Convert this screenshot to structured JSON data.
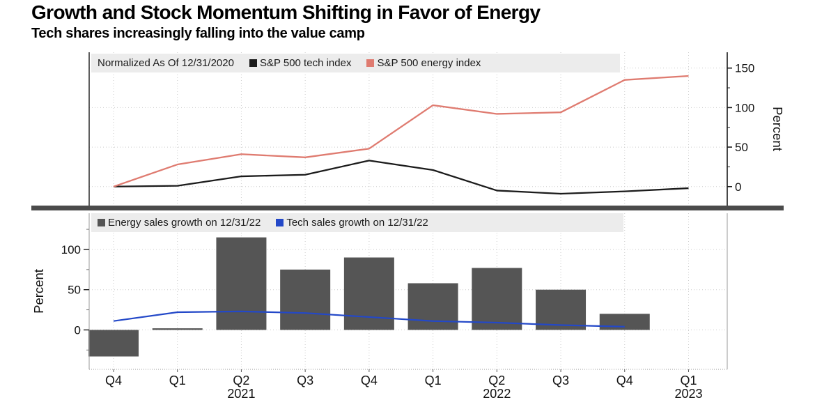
{
  "header": {
    "title": "Growth and Stock Momentum Shifting in Favor of Energy",
    "subtitle": "Tech shares increasingly falling into the value camp"
  },
  "colors": {
    "tech_index": "#1b1b1b",
    "energy_index": "#df7b70",
    "energy_bars": "#555555",
    "tech_sales": "#2348c8",
    "separator": "#4b4b4b",
    "legend_bg": "#ececec",
    "grid": "#cbcbcb",
    "axis_dark": "#1a1a1a",
    "axis_light": "#9a9a9a",
    "tick_text": "#111111"
  },
  "x_axis": {
    "quarter_labels": [
      "Q4",
      "Q1",
      "Q2",
      "Q3",
      "Q4",
      "Q1",
      "Q2",
      "Q3",
      "Q4",
      "Q1"
    ],
    "year_labels": [
      {
        "text": "2021",
        "index": 2
      },
      {
        "text": "2022",
        "index": 6
      },
      {
        "text": "2023",
        "index": 9
      }
    ]
  },
  "top_chart": {
    "legend_note": "Normalized As Of 12/31/2020",
    "legend": [
      {
        "label": "S&P 500 tech index",
        "color": "#1b1b1b"
      },
      {
        "label": "S&P 500 energy index",
        "color": "#df7b70"
      }
    ],
    "y_axis": {
      "label": "Percent",
      "side": "right"
    }
  },
  "bottom_chart": {
    "legend": [
      {
        "label": "Energy sales growth on 12/31/22",
        "color": "#555555"
      },
      {
        "label": "Tech sales growth on 12/31/22",
        "color": "#2348c8"
      }
    ],
    "y_axis": {
      "label": "Percent",
      "side": "left"
    }
  },
  "chart_data": [
    {
      "type": "line",
      "title": "S&P 500 tech vs energy index, normalized as of 12/31/2020",
      "categories": [
        "Q4 2020",
        "Q1 2021",
        "Q2 2021",
        "Q3 2021",
        "Q4 2021",
        "Q1 2022",
        "Q2 2022",
        "Q3 2022",
        "Q4 2022",
        "Q1 2023"
      ],
      "series": [
        {
          "name": "S&P 500 tech index",
          "color_key": "tech_index",
          "values": [
            0,
            1,
            13,
            15,
            33,
            21,
            -5,
            -9,
            -6,
            -2
          ]
        },
        {
          "name": "S&P 500 energy index",
          "color_key": "energy_index",
          "values": [
            0,
            28,
            41,
            37,
            48,
            103,
            92,
            94,
            135,
            140
          ]
        }
      ],
      "ylabel": "Percent",
      "ylim": [
        -24,
        170
      ],
      "yticks": [
        0,
        50,
        100,
        150
      ],
      "yticks_minor": [
        25,
        75,
        125
      ],
      "grid": true,
      "legend_position": "top"
    },
    {
      "type": "bar",
      "title": "Quarterly sales growth",
      "categories": [
        "Q4 2020",
        "Q1 2021",
        "Q2 2021",
        "Q3 2021",
        "Q4 2021",
        "Q1 2022",
        "Q2 2022",
        "Q3 2022",
        "Q4 2022",
        "Q1 2023"
      ],
      "series": [
        {
          "name": "Energy sales growth on 12/31/22",
          "type": "bar",
          "color_key": "energy_bars",
          "values": [
            -33,
            2,
            115,
            75,
            90,
            58,
            77,
            50,
            20,
            null
          ]
        },
        {
          "name": "Tech sales growth on 12/31/22",
          "type": "line",
          "color_key": "tech_sales",
          "values": [
            11,
            22,
            23,
            21,
            16,
            11,
            9,
            6,
            4,
            null
          ]
        }
      ],
      "ylabel": "Percent",
      "ylim": [
        -49,
        145
      ],
      "yticks": [
        0,
        50,
        100
      ],
      "yticks_minor": [
        -25,
        25,
        75,
        125
      ],
      "grid": true,
      "legend_position": "top"
    }
  ]
}
